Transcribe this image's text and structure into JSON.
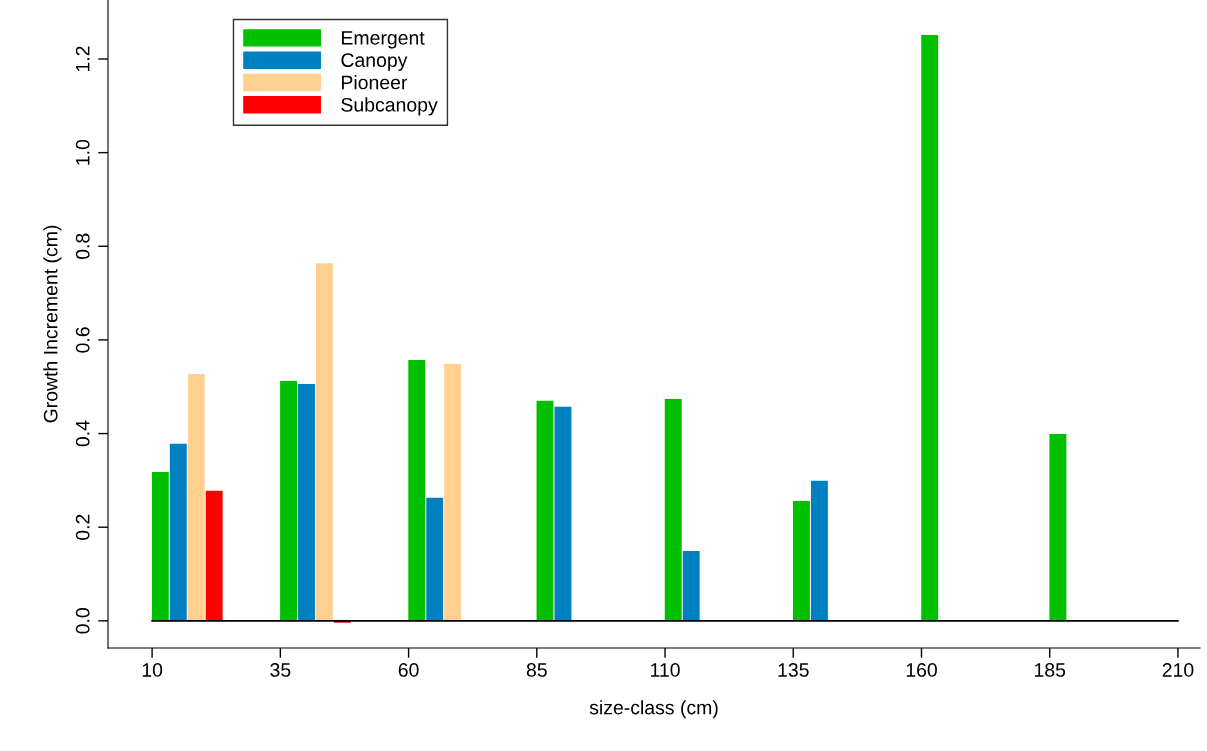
{
  "chart_data": {
    "type": "bar",
    "xlabel": "size-class (cm)",
    "ylabel": "Growth Increment (cm)",
    "x": [
      10,
      35,
      60,
      85,
      110,
      135,
      160,
      185
    ],
    "series": [
      {
        "name": "Emergent",
        "color": "#00c000",
        "values": [
          0.318,
          0.512,
          0.557,
          0.47,
          0.474,
          0.256,
          1.251,
          0.399
        ]
      },
      {
        "name": "Canopy",
        "color": "#0080c0",
        "values": [
          0.378,
          0.506,
          0.263,
          0.457,
          0.149,
          0.299,
          null,
          null
        ]
      },
      {
        "name": "Pioneer",
        "color": "#ffd090",
        "values": [
          0.527,
          0.764,
          0.549,
          null,
          null,
          null,
          null,
          null
        ]
      },
      {
        "name": "Subcanopy",
        "color": "#ff0000",
        "values": [
          0.278,
          -0.004,
          null,
          null,
          null,
          null,
          null,
          null
        ]
      }
    ],
    "xlim": [
      1.4,
      214.3
    ],
    "xticks": [
      10,
      35,
      60,
      85,
      110,
      135,
      160,
      185,
      210
    ],
    "ylim": [
      -0.058,
      1.326
    ],
    "yticks": [
      {
        "value": 0,
        "label": "0.0"
      },
      {
        "value": 0.2,
        "label": "0.2"
      },
      {
        "value": 0.4,
        "label": "0.4"
      },
      {
        "value": 0.6,
        "label": "0.6"
      },
      {
        "value": 0.8,
        "label": "0.8"
      },
      {
        "value": 1.0,
        "label": "1.0"
      },
      {
        "value": 1.2,
        "label": "1.2"
      }
    ],
    "ref_lines": [
      {
        "axis": "y",
        "value": 0,
        "color": "#000000"
      }
    ],
    "legend": "top left",
    "grid": false
  }
}
